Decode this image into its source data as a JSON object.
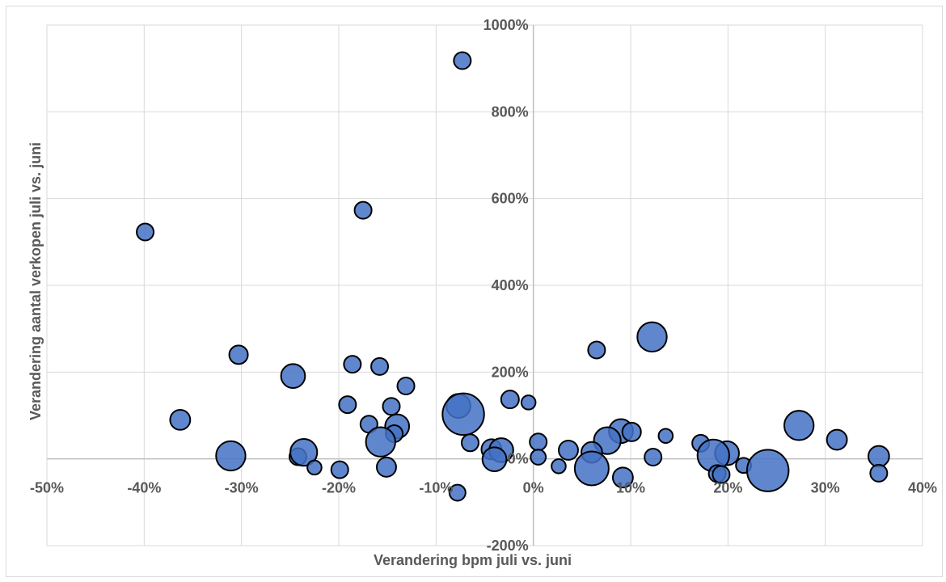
{
  "chart_data": {
    "type": "bubble",
    "xlabel": "Verandering bpm juli vs. juni",
    "ylabel": "Verandering aantal verkopen juli vs. juni",
    "x_unit": "%",
    "y_unit": "%",
    "xlim": [
      -50,
      40
    ],
    "ylim": [
      -200,
      1000
    ],
    "x_ticks": [
      "-50%",
      "-40%",
      "-30%",
      "-20%",
      "-10%",
      "0%",
      "10%",
      "20%",
      "30%",
      "40%"
    ],
    "y_ticks": [
      "-200%",
      "0%",
      "200%",
      "400%",
      "600%",
      "800%",
      "1000%"
    ],
    "grid": true,
    "bubble_color": "#4472C4",
    "bubble_edge_color": "#000000",
    "points": [
      {
        "x": -7.3,
        "y": 918,
        "size": 1
      },
      {
        "x": -17.5,
        "y": 573,
        "size": 1
      },
      {
        "x": -39.9,
        "y": 523,
        "size": 1
      },
      {
        "x": 12.2,
        "y": 281,
        "size": 3
      },
      {
        "x": 6.5,
        "y": 251,
        "size": 1
      },
      {
        "x": -30.3,
        "y": 240,
        "size": 1.2
      },
      {
        "x": -18.6,
        "y": 218,
        "size": 1
      },
      {
        "x": -15.8,
        "y": 213,
        "size": 1
      },
      {
        "x": -24.7,
        "y": 191,
        "size": 2
      },
      {
        "x": -13.1,
        "y": 168,
        "size": 1
      },
      {
        "x": -2.4,
        "y": 137,
        "size": 1.1
      },
      {
        "x": -0.5,
        "y": 130,
        "size": 0.7
      },
      {
        "x": -19.1,
        "y": 125,
        "size": 1
      },
      {
        "x": -7.7,
        "y": 122,
        "size": 2
      },
      {
        "x": -14.6,
        "y": 121,
        "size": 1
      },
      {
        "x": -7.2,
        "y": 103,
        "size": 6
      },
      {
        "x": -36.3,
        "y": 90,
        "size": 1.4
      },
      {
        "x": -16.9,
        "y": 80,
        "size": 1
      },
      {
        "x": 27.3,
        "y": 77,
        "size": 3
      },
      {
        "x": -14.0,
        "y": 75,
        "size": 2
      },
      {
        "x": 9.0,
        "y": 64,
        "size": 2
      },
      {
        "x": 10.1,
        "y": 62,
        "size": 1.2
      },
      {
        "x": -14.3,
        "y": 58,
        "size": 1
      },
      {
        "x": 13.6,
        "y": 53,
        "size": 0.7
      },
      {
        "x": 31.2,
        "y": 44,
        "size": 1.4
      },
      {
        "x": 7.6,
        "y": 42,
        "size": 2.5
      },
      {
        "x": -15.7,
        "y": 39,
        "size": 3
      },
      {
        "x": 0.5,
        "y": 39,
        "size": 1
      },
      {
        "x": -6.5,
        "y": 37,
        "size": 1
      },
      {
        "x": 17.2,
        "y": 36,
        "size": 1
      },
      {
        "x": -4.3,
        "y": 22,
        "size": 1.4
      },
      {
        "x": -3.3,
        "y": 20,
        "size": 2
      },
      {
        "x": 3.6,
        "y": 20,
        "size": 1.3
      },
      {
        "x": -24.2,
        "y": 5,
        "size": 1
      },
      {
        "x": -23.6,
        "y": 15,
        "size": 2.5
      },
      {
        "x": 6.0,
        "y": 15,
        "size": 1.5
      },
      {
        "x": 19.9,
        "y": 13,
        "size": 2
      },
      {
        "x": -31.1,
        "y": 7,
        "size": 3
      },
      {
        "x": 18.5,
        "y": 8,
        "size": 3.5
      },
      {
        "x": 35.5,
        "y": 6,
        "size": 1.5
      },
      {
        "x": 0.5,
        "y": 4,
        "size": 0.8
      },
      {
        "x": 12.3,
        "y": 4,
        "size": 1
      },
      {
        "x": -4.0,
        "y": -1,
        "size": 2
      },
      {
        "x": 21.6,
        "y": -15,
        "size": 0.8
      },
      {
        "x": 2.6,
        "y": -17,
        "size": 0.7
      },
      {
        "x": -22.5,
        "y": -20,
        "size": 0.7
      },
      {
        "x": 6.0,
        "y": -22,
        "size": 4
      },
      {
        "x": -15.1,
        "y": -19,
        "size": 1.3
      },
      {
        "x": 24.1,
        "y": -27,
        "size": 6
      },
      {
        "x": -19.9,
        "y": -25,
        "size": 1
      },
      {
        "x": 18.9,
        "y": -34,
        "size": 1
      },
      {
        "x": 19.3,
        "y": -36,
        "size": 1
      },
      {
        "x": 35.5,
        "y": -33,
        "size": 1
      },
      {
        "x": 9.2,
        "y": -43,
        "size": 1.4
      },
      {
        "x": -7.8,
        "y": -78,
        "size": 0.9
      }
    ]
  }
}
